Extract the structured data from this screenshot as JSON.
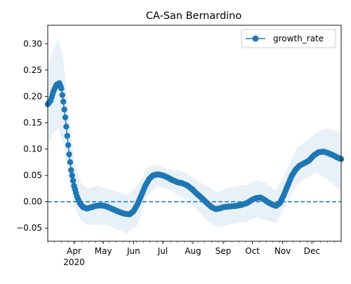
{
  "chart_data": {
    "type": "line",
    "title": "CA-San Bernardino",
    "xlabel": "",
    "ylabel": "",
    "x_range": [
      "2020-03-05",
      "2020-12-31"
    ],
    "ylim": [
      -0.075,
      0.335
    ],
    "grid": false,
    "legend_position": "upper right",
    "colors": {
      "series": "#1f77b4",
      "band": "#1f77b4",
      "reference": "#1f77b4"
    },
    "x_ticks": [
      {
        "date": "2020-04-01",
        "label": "Apr",
        "sublabel": "2020"
      },
      {
        "date": "2020-05-01",
        "label": "May",
        "sublabel": ""
      },
      {
        "date": "2020-06-01",
        "label": "Jun",
        "sublabel": ""
      },
      {
        "date": "2020-07-01",
        "label": "Jul",
        "sublabel": ""
      },
      {
        "date": "2020-08-01",
        "label": "Aug",
        "sublabel": ""
      },
      {
        "date": "2020-09-01",
        "label": "Sep",
        "sublabel": ""
      },
      {
        "date": "2020-10-01",
        "label": "Oct",
        "sublabel": ""
      },
      {
        "date": "2020-11-01",
        "label": "Nov",
        "sublabel": ""
      },
      {
        "date": "2020-12-01",
        "label": "Dec",
        "sublabel": ""
      }
    ],
    "y_ticks": [
      {
        "value": -0.05,
        "label": "−0.05"
      },
      {
        "value": 0.0,
        "label": "0.00"
      },
      {
        "value": 0.05,
        "label": "0.05"
      },
      {
        "value": 0.1,
        "label": "0.10"
      },
      {
        "value": 0.15,
        "label": "0.15"
      },
      {
        "value": 0.2,
        "label": "0.20"
      },
      {
        "value": 0.25,
        "label": "0.25"
      },
      {
        "value": 0.3,
        "label": "0.30"
      }
    ],
    "reference_line": {
      "y": 0.0,
      "style": "dashed"
    },
    "series": [
      {
        "name": "growth_rate",
        "marker": "circle",
        "points": [
          [
            "2020-03-05",
            0.185
          ],
          [
            "2020-03-08",
            0.192
          ],
          [
            "2020-03-11",
            0.21
          ],
          [
            "2020-03-14",
            0.222
          ],
          [
            "2020-03-17",
            0.225
          ],
          [
            "2020-03-19",
            0.215
          ],
          [
            "2020-03-21",
            0.19
          ],
          [
            "2020-03-23",
            0.16
          ],
          [
            "2020-03-25",
            0.125
          ],
          [
            "2020-03-27",
            0.09
          ],
          [
            "2020-03-29",
            0.06
          ],
          [
            "2020-04-01",
            0.03
          ],
          [
            "2020-04-04",
            0.01
          ],
          [
            "2020-04-07",
            -0.003
          ],
          [
            "2020-04-10",
            -0.01
          ],
          [
            "2020-04-14",
            -0.013
          ],
          [
            "2020-04-18",
            -0.011
          ],
          [
            "2020-04-23",
            -0.008
          ],
          [
            "2020-04-28",
            -0.007
          ],
          [
            "2020-05-03",
            -0.008
          ],
          [
            "2020-05-08",
            -0.012
          ],
          [
            "2020-05-13",
            -0.016
          ],
          [
            "2020-05-18",
            -0.02
          ],
          [
            "2020-05-23",
            -0.023
          ],
          [
            "2020-05-28",
            -0.024
          ],
          [
            "2020-06-01",
            -0.018
          ],
          [
            "2020-06-05",
            -0.005
          ],
          [
            "2020-06-09",
            0.012
          ],
          [
            "2020-06-13",
            0.03
          ],
          [
            "2020-06-17",
            0.043
          ],
          [
            "2020-06-21",
            0.05
          ],
          [
            "2020-06-26",
            0.052
          ],
          [
            "2020-07-01",
            0.05
          ],
          [
            "2020-07-06",
            0.046
          ],
          [
            "2020-07-11",
            0.041
          ],
          [
            "2020-07-16",
            0.037
          ],
          [
            "2020-07-21",
            0.035
          ],
          [
            "2020-07-26",
            0.031
          ],
          [
            "2020-07-31",
            0.024
          ],
          [
            "2020-08-05",
            0.015
          ],
          [
            "2020-08-10",
            0.007
          ],
          [
            "2020-08-15",
            -0.002
          ],
          [
            "2020-08-20",
            -0.01
          ],
          [
            "2020-08-24",
            -0.014
          ],
          [
            "2020-08-28",
            -0.013
          ],
          [
            "2020-09-02",
            -0.01
          ],
          [
            "2020-09-08",
            -0.009
          ],
          [
            "2020-09-14",
            -0.008
          ],
          [
            "2020-09-20",
            -0.006
          ],
          [
            "2020-09-26",
            -0.002
          ],
          [
            "2020-10-01",
            0.004
          ],
          [
            "2020-10-05",
            0.007
          ],
          [
            "2020-10-09",
            0.008
          ],
          [
            "2020-10-13",
            0.004
          ],
          [
            "2020-10-17",
            -0.001
          ],
          [
            "2020-10-21",
            -0.005
          ],
          [
            "2020-10-25",
            -0.008
          ],
          [
            "2020-10-29",
            -0.003
          ],
          [
            "2020-11-02",
            0.012
          ],
          [
            "2020-11-06",
            0.03
          ],
          [
            "2020-11-10",
            0.048
          ],
          [
            "2020-11-14",
            0.06
          ],
          [
            "2020-11-18",
            0.068
          ],
          [
            "2020-11-23",
            0.073
          ],
          [
            "2020-11-28",
            0.078
          ],
          [
            "2020-12-03",
            0.088
          ],
          [
            "2020-12-08",
            0.094
          ],
          [
            "2020-12-13",
            0.095
          ],
          [
            "2020-12-18",
            0.092
          ],
          [
            "2020-12-23",
            0.088
          ],
          [
            "2020-12-27",
            0.084
          ],
          [
            "2020-12-31",
            0.081
          ]
        ],
        "band_upper": [
          [
            "2020-03-05",
            0.26
          ],
          [
            "2020-03-10",
            0.285
          ],
          [
            "2020-03-16",
            0.31
          ],
          [
            "2020-03-21",
            0.27
          ],
          [
            "2020-03-26",
            0.18
          ],
          [
            "2020-04-01",
            0.08
          ],
          [
            "2020-04-08",
            0.035
          ],
          [
            "2020-04-15",
            0.025
          ],
          [
            "2020-04-25",
            0.03
          ],
          [
            "2020-05-05",
            0.025
          ],
          [
            "2020-05-15",
            0.02
          ],
          [
            "2020-05-25",
            0.012
          ],
          [
            "2020-06-05",
            0.03
          ],
          [
            "2020-06-15",
            0.065
          ],
          [
            "2020-06-25",
            0.07
          ],
          [
            "2020-07-05",
            0.062
          ],
          [
            "2020-07-15",
            0.06
          ],
          [
            "2020-07-25",
            0.055
          ],
          [
            "2020-08-05",
            0.04
          ],
          [
            "2020-08-15",
            0.03
          ],
          [
            "2020-08-25",
            0.018
          ],
          [
            "2020-09-05",
            0.025
          ],
          [
            "2020-09-15",
            0.03
          ],
          [
            "2020-09-25",
            0.032
          ],
          [
            "2020-10-05",
            0.04
          ],
          [
            "2020-10-15",
            0.035
          ],
          [
            "2020-10-25",
            0.02
          ],
          [
            "2020-11-05",
            0.06
          ],
          [
            "2020-11-15",
            0.1
          ],
          [
            "2020-11-25",
            0.115
          ],
          [
            "2020-12-05",
            0.13
          ],
          [
            "2020-12-15",
            0.14
          ],
          [
            "2020-12-25",
            0.135
          ],
          [
            "2020-12-31",
            0.13
          ]
        ],
        "band_lower": [
          [
            "2020-03-05",
            0.1
          ],
          [
            "2020-03-10",
            0.13
          ],
          [
            "2020-03-16",
            0.14
          ],
          [
            "2020-03-21",
            0.11
          ],
          [
            "2020-03-26",
            0.05
          ],
          [
            "2020-04-01",
            -0.01
          ],
          [
            "2020-04-08",
            -0.035
          ],
          [
            "2020-04-15",
            -0.045
          ],
          [
            "2020-04-25",
            -0.043
          ],
          [
            "2020-05-05",
            -0.045
          ],
          [
            "2020-05-15",
            -0.052
          ],
          [
            "2020-05-25",
            -0.06
          ],
          [
            "2020-06-05",
            -0.045
          ],
          [
            "2020-06-15",
            0.01
          ],
          [
            "2020-06-25",
            0.03
          ],
          [
            "2020-07-05",
            0.025
          ],
          [
            "2020-07-15",
            0.015
          ],
          [
            "2020-07-25",
            0.005
          ],
          [
            "2020-08-05",
            -0.015
          ],
          [
            "2020-08-15",
            -0.035
          ],
          [
            "2020-08-25",
            -0.048
          ],
          [
            "2020-09-05",
            -0.045
          ],
          [
            "2020-09-15",
            -0.04
          ],
          [
            "2020-09-25",
            -0.038
          ],
          [
            "2020-10-05",
            -0.03
          ],
          [
            "2020-10-15",
            -0.035
          ],
          [
            "2020-10-25",
            -0.04
          ],
          [
            "2020-11-05",
            -0.005
          ],
          [
            "2020-11-15",
            0.03
          ],
          [
            "2020-11-25",
            0.045
          ],
          [
            "2020-12-05",
            0.055
          ],
          [
            "2020-12-15",
            0.045
          ],
          [
            "2020-12-25",
            0.03
          ],
          [
            "2020-12-31",
            0.02
          ]
        ]
      }
    ]
  }
}
